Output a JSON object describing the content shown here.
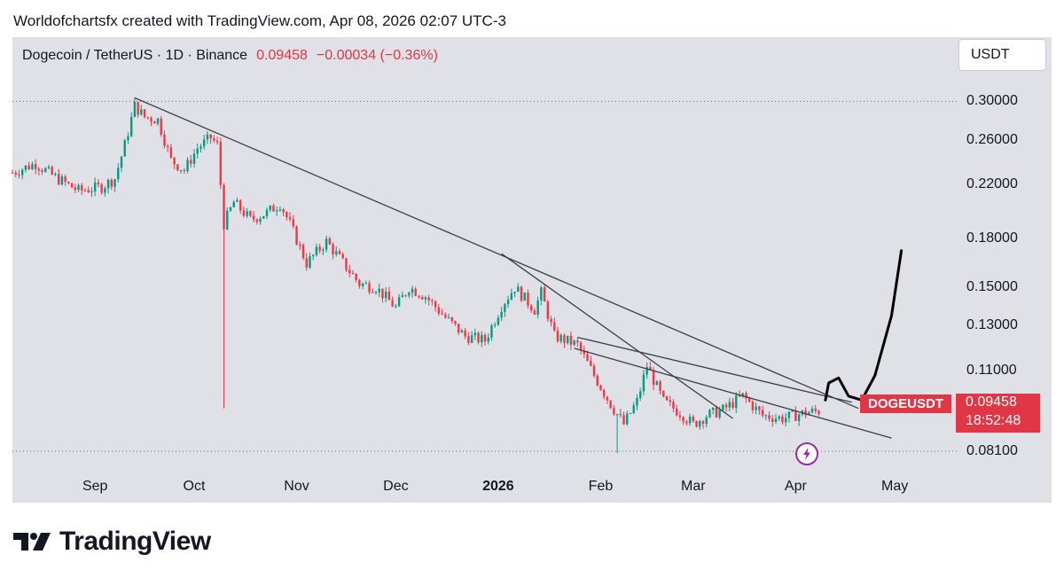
{
  "header": {
    "text": "Worldofchartsfx created with TradingView.com, Apr 08, 2026 02:07 UTC-3"
  },
  "symbol_bar": {
    "title": "Dogecoin / TetherUS · 1D · Binance",
    "price": "0.09458",
    "change": "−0.00034 (−0.36%)"
  },
  "currency_button": {
    "label": "USDT"
  },
  "price_tag": {
    "ticker": "DOGEUSDT",
    "price": "0.09458",
    "countdown": "18:52:48"
  },
  "brand": {
    "name": "TradingView"
  },
  "colors": {
    "up": "#089981",
    "down": "#f23645",
    "label": "#e03645",
    "panel": "#dfe1e7",
    "lines": "#3c3f4a",
    "accent": "#9c27b0"
  },
  "icons": {
    "flash": "lightning-bolt-icon",
    "logo": "tradingview-logo-icon"
  },
  "chart_data": {
    "type": "candlestick",
    "scale": "log",
    "ylim": [
      0.0785,
      0.323
    ],
    "x_ticks": [
      {
        "label": "Sep",
        "date": "2025-09-01"
      },
      {
        "label": "Oct",
        "date": "2025-10-01"
      },
      {
        "label": "Nov",
        "date": "2025-11-01"
      },
      {
        "label": "Dec",
        "date": "2025-12-01"
      },
      {
        "label": "2026",
        "date": "2026-01-01",
        "bold": true
      },
      {
        "label": "Feb",
        "date": "2026-02-01"
      },
      {
        "label": "Mar",
        "date": "2026-03-01"
      },
      {
        "label": "Apr",
        "date": "2026-04-01"
      },
      {
        "label": "May",
        "date": "2026-05-01"
      }
    ],
    "y_ticks": [
      "0.30000",
      "0.26000",
      "0.22000",
      "0.18000",
      "0.15000",
      "0.13000",
      "0.11000",
      "0.08100"
    ],
    "xlim": [
      "2025-08-07",
      "2026-05-20"
    ],
    "last_price": 0.09458,
    "dotted_levels": [
      0.3,
      0.0814
    ],
    "close_path": [
      [
        "2025-08-07",
        0.23
      ],
      [
        "2025-08-14",
        0.238
      ],
      [
        "2025-08-20",
        0.226
      ],
      [
        "2025-08-27",
        0.215
      ],
      [
        "2025-09-03",
        0.218
      ],
      [
        "2025-09-07",
        0.225
      ],
      [
        "2025-09-10",
        0.255
      ],
      [
        "2025-09-13",
        0.295
      ],
      [
        "2025-09-16",
        0.283
      ],
      [
        "2025-09-20",
        0.28
      ],
      [
        "2025-09-24",
        0.241
      ],
      [
        "2025-09-28",
        0.232
      ],
      [
        "2025-10-02",
        0.252
      ],
      [
        "2025-10-06",
        0.262
      ],
      [
        "2025-10-08",
        0.255
      ],
      [
        "2025-10-10",
        0.19
      ],
      [
        "2025-10-13",
        0.206
      ],
      [
        "2025-10-18",
        0.193
      ],
      [
        "2025-10-23",
        0.198
      ],
      [
        "2025-10-27",
        0.205
      ],
      [
        "2025-10-30",
        0.19
      ],
      [
        "2025-11-04",
        0.164
      ],
      [
        "2025-11-10",
        0.178
      ],
      [
        "2025-11-14",
        0.167
      ],
      [
        "2025-11-20",
        0.152
      ],
      [
        "2025-11-25",
        0.15
      ],
      [
        "2025-12-01",
        0.139
      ],
      [
        "2025-12-05",
        0.15
      ],
      [
        "2025-12-10",
        0.145
      ],
      [
        "2025-12-16",
        0.134
      ],
      [
        "2025-12-22",
        0.125
      ],
      [
        "2025-12-28",
        0.123
      ],
      [
        "2026-01-02",
        0.14
      ],
      [
        "2026-01-06",
        0.15
      ],
      [
        "2026-01-12",
        0.138
      ],
      [
        "2026-01-14",
        0.147
      ],
      [
        "2026-01-18",
        0.125
      ],
      [
        "2026-01-25",
        0.121
      ],
      [
        "2026-01-30",
        0.108
      ],
      [
        "2026-02-04",
        0.097
      ],
      [
        "2026-02-08",
        0.09
      ],
      [
        "2026-02-12",
        0.098
      ],
      [
        "2026-02-15",
        0.112
      ],
      [
        "2026-02-20",
        0.098
      ],
      [
        "2026-02-25",
        0.094
      ],
      [
        "2026-03-01",
        0.09
      ],
      [
        "2026-03-05",
        0.093
      ],
      [
        "2026-03-10",
        0.095
      ],
      [
        "2026-03-16",
        0.1
      ],
      [
        "2026-03-22",
        0.093
      ],
      [
        "2026-03-28",
        0.092
      ],
      [
        "2026-04-04",
        0.094
      ],
      [
        "2026-04-08",
        0.09458
      ]
    ],
    "wicks": [
      {
        "date": "2025-09-13",
        "high": 0.304
      },
      {
        "date": "2025-10-10",
        "low": 0.0955
      },
      {
        "date": "2026-02-06",
        "low": 0.0808
      }
    ],
    "trendlines": [
      {
        "from": [
          "2025-09-13",
          0.304
        ],
        "to": [
          "2026-04-20",
          0.0955
        ]
      },
      {
        "from": [
          "2026-01-02",
          0.17
        ],
        "to": [
          "2026-03-13",
          0.092
        ]
      },
      {
        "from": [
          "2026-01-24",
          0.1195
        ],
        "to": [
          "2026-04-30",
          0.0855
        ]
      },
      {
        "from": [
          "2026-01-25",
          0.1245
        ],
        "to": [
          "2026-04-18",
          0.0977
        ]
      }
    ],
    "projection": [
      [
        "2026-04-10",
        0.0985
      ],
      [
        "2026-04-11",
        0.105
      ],
      [
        "2026-04-14",
        0.107
      ],
      [
        "2026-04-17",
        0.1
      ],
      [
        "2026-04-21",
        0.0985
      ],
      [
        "2026-04-25",
        0.108
      ],
      [
        "2026-04-30",
        0.135
      ],
      [
        "2026-05-03",
        0.172
      ]
    ]
  }
}
